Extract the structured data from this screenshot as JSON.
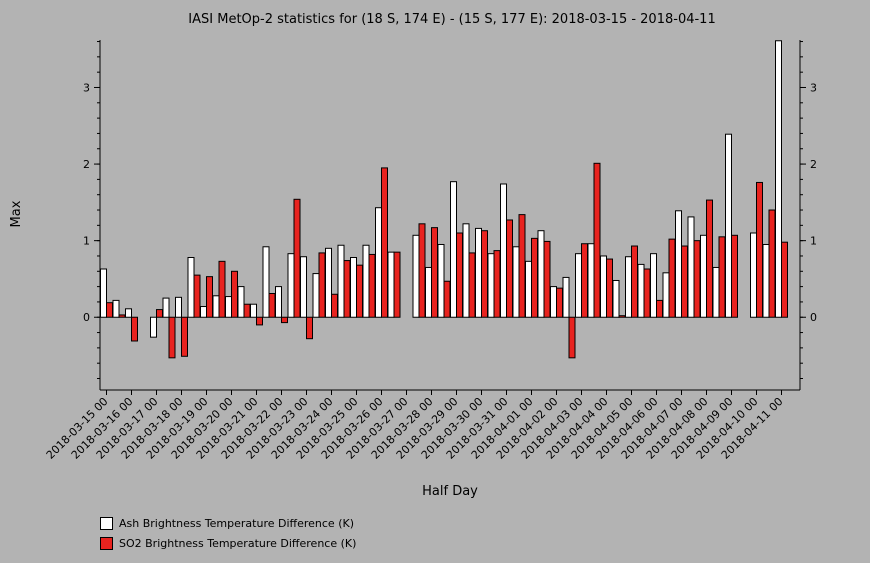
{
  "chart_data": {
    "type": "bar",
    "title": "IASI MetOp-2 statistics for (18 S, 174 E) - (15 S, 177 E): 2018-03-15 - 2018-04-11",
    "xlabel": "Half Day",
    "ylabel": "Max",
    "ylim": [
      -0.95,
      3.62
    ],
    "yticks": [
      0,
      1,
      2,
      3
    ],
    "tick_labels": [
      "2018-03-15 00",
      "2018-03-16 00",
      "2018-03-17 00",
      "2018-03-18 00",
      "2018-03-19 00",
      "2018-03-20 00",
      "2018-03-21 00",
      "2018-03-22 00",
      "2018-03-23 00",
      "2018-03-24 00",
      "2018-03-25 00",
      "2018-03-26 00",
      "2018-03-27 00",
      "2018-03-28 00",
      "2018-03-29 00",
      "2018-03-30 00",
      "2018-03-31 00",
      "2018-04-01 00",
      "2018-04-02 00",
      "2018-04-03 00",
      "2018-04-04 00",
      "2018-04-05 00",
      "2018-04-06 00",
      "2018-04-07 00",
      "2018-04-08 00",
      "2018-04-09 00",
      "2018-04-10 00",
      "2018-04-11 00"
    ],
    "series": [
      {
        "name": "Ash Brightness Temperature Difference (K)",
        "color": "#ffffff",
        "values": [
          0.63,
          0.22,
          0.11,
          null,
          -0.26,
          0.25,
          0.26,
          0.78,
          0.14,
          0.28,
          0.27,
          0.4,
          0.17,
          0.92,
          0.4,
          0.83,
          0.79,
          0.57,
          0.9,
          0.94,
          0.78,
          0.94,
          1.43,
          0.85,
          null,
          1.07,
          0.65,
          0.95,
          1.77,
          1.22,
          1.16,
          0.83,
          1.74,
          0.92,
          0.73,
          1.13,
          0.4,
          0.52,
          0.83,
          0.96,
          0.8,
          0.48,
          0.79,
          0.69,
          0.83,
          0.58,
          1.39,
          1.31,
          1.07,
          0.65,
          2.39,
          null,
          1.1,
          0.95,
          3.61
        ]
      },
      {
        "name": "SO2 Brightness Temperature Difference (K)",
        "color": "#e8231f",
        "values": [
          0.19,
          0.03,
          -0.31,
          null,
          0.1,
          -0.53,
          -0.51,
          0.55,
          0.53,
          0.73,
          0.6,
          0.17,
          -0.1,
          0.31,
          -0.07,
          1.54,
          -0.28,
          0.84,
          0.3,
          0.74,
          0.68,
          0.82,
          1.95,
          0.85,
          null,
          1.22,
          1.17,
          0.47,
          1.1,
          0.84,
          1.13,
          0.87,
          1.27,
          1.34,
          1.03,
          0.99,
          0.38,
          -0.53,
          0.96,
          2.01,
          0.76,
          0.02,
          0.93,
          0.63,
          0.22,
          1.02,
          0.93,
          1.0,
          1.53,
          1.05,
          1.07,
          null,
          1.76,
          1.4,
          0.98
        ]
      }
    ],
    "grid": false,
    "legend_position": "bottom-left"
  }
}
